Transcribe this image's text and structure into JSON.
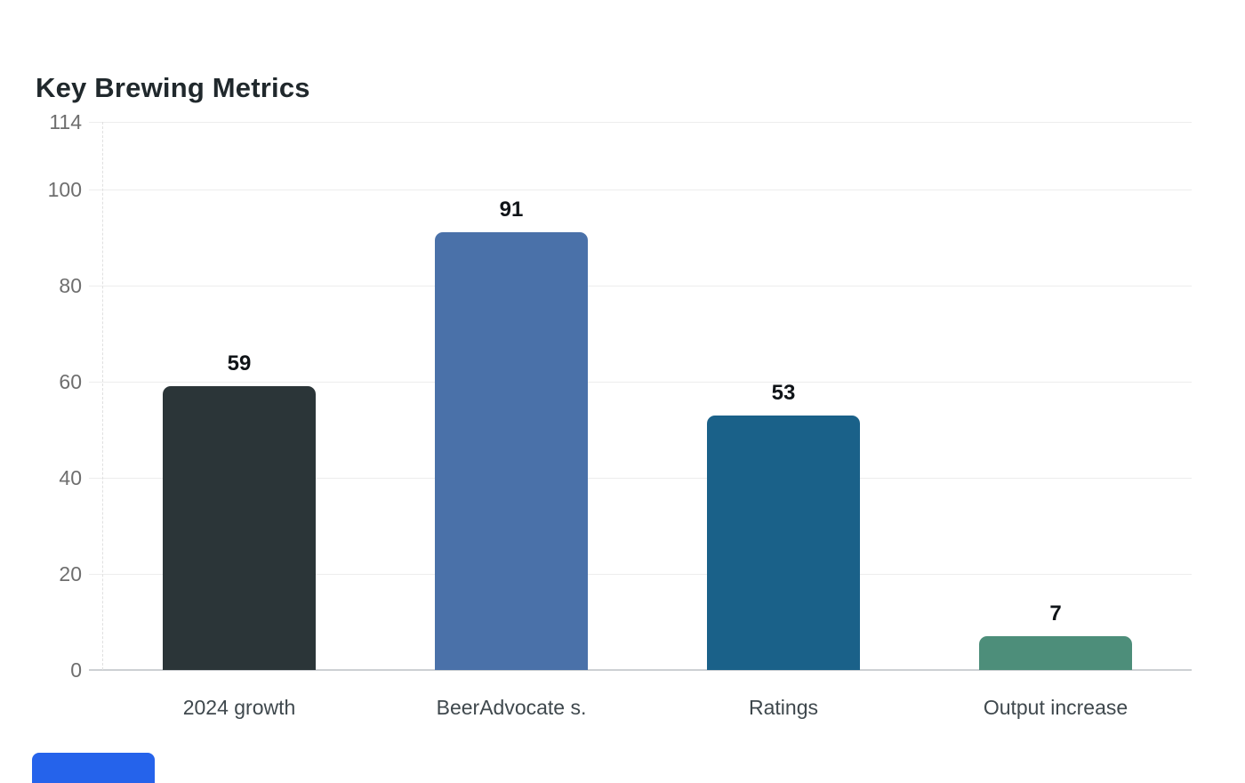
{
  "page": {
    "title": "Key Brewing Metrics"
  },
  "chart_data": {
    "type": "bar",
    "title": "Key Brewing Metrics",
    "categories": [
      "2024 growth",
      "BeerAdvocate s.",
      "Ratings",
      "Output increase"
    ],
    "values": [
      59,
      91,
      53,
      7
    ],
    "bar_colors": [
      "#2b3538",
      "#4a71a9",
      "#1a6189",
      "#4d8e7a"
    ],
    "data_labels": [
      "59",
      "91",
      "53",
      "7"
    ],
    "yticks": [
      0,
      20,
      40,
      60,
      80,
      100,
      114
    ],
    "ylim": [
      0,
      114
    ],
    "xlabel": "",
    "ylabel": "",
    "grid": true,
    "legend": false,
    "value_labels_shown": true
  },
  "colors": {
    "title": "#20282c",
    "grid": "#ededed",
    "baseline": "#cdd0d3",
    "tick_label": "#6e6e6e",
    "category_label": "#3f484d",
    "value_label": "#101418",
    "partial_button": "#2563eb"
  },
  "partial_button": {
    "label": ""
  }
}
